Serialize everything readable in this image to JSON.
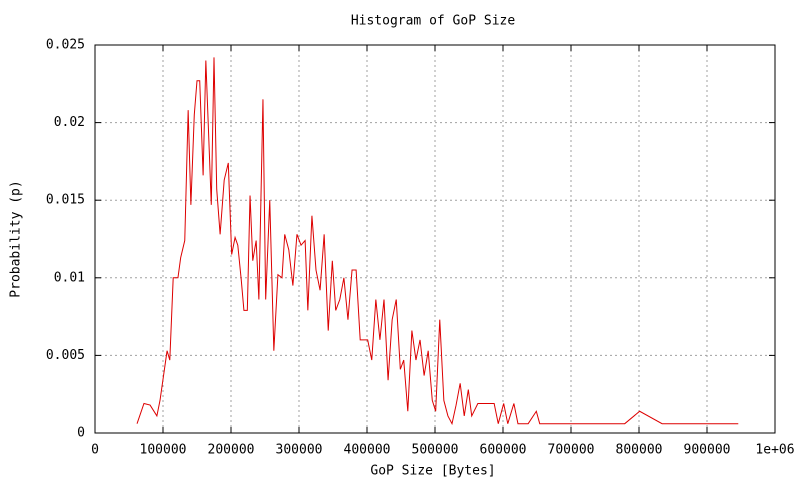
{
  "chart_data": {
    "type": "line",
    "title": "Histogram of GoP Size",
    "x_label": "GoP Size [Bytes]",
    "y_label": "Probability (p)",
    "grid": true,
    "xlim": [
      0,
      1000000
    ],
    "xticks": [
      0,
      100000,
      200000,
      300000,
      400000,
      500000,
      600000,
      700000,
      800000,
      900000,
      {
        "value": 1000000,
        "label": "1e+06"
      }
    ],
    "ylim": [
      0,
      0.025
    ],
    "yticks": [
      0,
      0.005,
      0.01,
      0.015,
      0.02,
      0.025
    ],
    "series": [
      {
        "color": "#dd0000",
        "x": [
          61800,
          72000,
          81000,
          91000,
          95600,
          106000,
          110000,
          115000,
          122000,
          126000,
          132000,
          137000,
          141000,
          146000,
          150000,
          154000,
          159000,
          163000,
          168000,
          171000,
          175000,
          179000,
          184000,
          190000,
          196000,
          201000,
          206000,
          210000,
          215000,
          219000,
          224000,
          228000,
          232000,
          237000,
          241000,
          247000,
          251000,
          257000,
          263000,
          269000,
          275000,
          279000,
          285000,
          291000,
          297000,
          303000,
          309000,
          313000,
          319000,
          325000,
          331000,
          337000,
          343000,
          349000,
          354000,
          360000,
          366000,
          372000,
          378000,
          384000,
          390000,
          396000,
          401000,
          407000,
          413000,
          419000,
          425000,
          431000,
          437000,
          443000,
          449000,
          454000,
          460000,
          466000,
          472000,
          478000,
          484000,
          490000,
          496000,
          501000,
          507000,
          513000,
          519000,
          525000,
          531000,
          537000,
          543000,
          549000,
          554000,
          563000,
          575000,
          587000,
          593000,
          601000,
          607000,
          616000,
          622000,
          637000,
          649000,
          654000,
          779000,
          801000,
          834000,
          946000
        ],
        "values": [
          0.0006,
          0.0019,
          0.0018,
          0.0011,
          0.0021,
          0.0053,
          0.0047,
          0.01,
          0.01,
          0.0113,
          0.0124,
          0.0208,
          0.0147,
          0.0205,
          0.0227,
          0.0227,
          0.0166,
          0.024,
          0.0182,
          0.0147,
          0.0242,
          0.0157,
          0.0128,
          0.0163,
          0.0174,
          0.0115,
          0.0126,
          0.0121,
          0.0099,
          0.0079,
          0.0079,
          0.0153,
          0.0111,
          0.0124,
          0.0086,
          0.0215,
          0.0086,
          0.015,
          0.0053,
          0.0102,
          0.01,
          0.0128,
          0.0118,
          0.0095,
          0.0128,
          0.0121,
          0.0124,
          0.0079,
          0.014,
          0.0105,
          0.0092,
          0.0128,
          0.0066,
          0.0111,
          0.0079,
          0.0086,
          0.01,
          0.0073,
          0.0105,
          0.0105,
          0.006,
          0.006,
          0.006,
          0.0047,
          0.0086,
          0.006,
          0.0086,
          0.0034,
          0.0073,
          0.0086,
          0.0041,
          0.0047,
          0.0014,
          0.0066,
          0.0047,
          0.006,
          0.0037,
          0.0053,
          0.0021,
          0.0014,
          0.0073,
          0.0021,
          0.0011,
          0.0006,
          0.0018,
          0.0032,
          0.0011,
          0.0028,
          0.0011,
          0.0019,
          0.0019,
          0.0019,
          0.0006,
          0.0019,
          0.0006,
          0.0019,
          0.0006,
          0.0006,
          0.0014,
          0.0006,
          0.0006,
          0.0014,
          0.0006,
          0.0006
        ]
      }
    ]
  }
}
